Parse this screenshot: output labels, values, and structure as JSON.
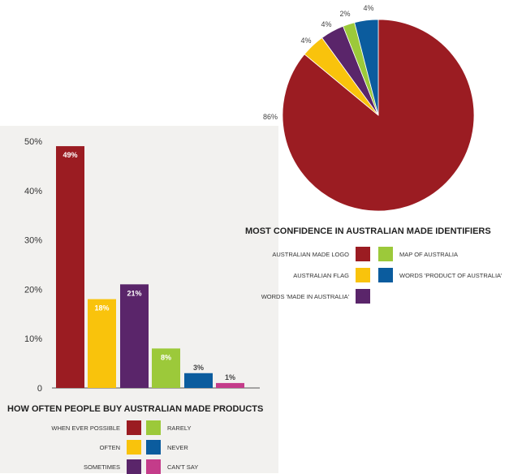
{
  "chart_data": [
    {
      "type": "pie",
      "title": "MOST CONFIDENCE IN AUSTRALIAN MADE IDENTIFIERS",
      "slices": [
        {
          "name": "AUSTRALIAN MADE LOGO",
          "value": 86,
          "label": "86%",
          "color": "#9b1c22"
        },
        {
          "name": "AUSTRALIAN FLAG",
          "value": 4,
          "label": "4%",
          "color": "#f9c30c"
        },
        {
          "name": "WORDS 'MADE IN AUSTRALIA'",
          "value": 4,
          "label": "4%",
          "color": "#5a256a"
        },
        {
          "name": "MAP OF AUSTRALIA",
          "value": 2,
          "label": "2%",
          "color": "#9cc93a"
        },
        {
          "name": "WORDS 'PRODUCT OF AUSTRALIA'",
          "value": 4,
          "label": "4%",
          "color": "#0b5c9e"
        }
      ],
      "legend": [
        {
          "label": "AUSTRALIAN MADE LOGO",
          "color": "#9b1c22"
        },
        {
          "label": "MAP OF AUSTRALIA",
          "color": "#9cc93a"
        },
        {
          "label": "AUSTRALIAN FLAG",
          "color": "#f9c30c"
        },
        {
          "label": "WORDS 'PRODUCT OF AUSTRALIA'",
          "color": "#0b5c9e"
        },
        {
          "label": "WORDS 'MADE IN AUSTRALIA'",
          "color": "#5a256a"
        }
      ]
    },
    {
      "type": "bar",
      "title": "HOW OFTEN PEOPLE BUY AUSTRALIAN MADE PRODUCTS",
      "categories": [
        "WHEN EVER POSSIBLE",
        "OFTEN",
        "SOMETIMES",
        "RARELY",
        "NEVER",
        "CAN'T SAY"
      ],
      "values": [
        49,
        18,
        21,
        8,
        3,
        1
      ],
      "value_labels": [
        "49%",
        "18%",
        "21%",
        "8%",
        "3%",
        "1%"
      ],
      "colors": [
        "#9b1c22",
        "#f9c30c",
        "#5a256a",
        "#9cc93a",
        "#0b5c9e",
        "#c43c8a"
      ],
      "ylim": [
        0,
        50
      ],
      "yticks": [
        0,
        10,
        20,
        30,
        40,
        50
      ],
      "ytick_labels": [
        "0",
        "10%",
        "20%",
        "30%",
        "40%",
        "50%"
      ],
      "grid": false,
      "legend": [
        {
          "label": "WHEN EVER POSSIBLE",
          "color": "#9b1c22"
        },
        {
          "label": "RARELY",
          "color": "#9cc93a"
        },
        {
          "label": "OFTEN",
          "color": "#f9c30c"
        },
        {
          "label": "NEVER",
          "color": "#0b5c9e"
        },
        {
          "label": "SOMETIMES",
          "color": "#5a256a"
        },
        {
          "label": "CAN'T SAY",
          "color": "#c43c8a"
        }
      ]
    }
  ]
}
